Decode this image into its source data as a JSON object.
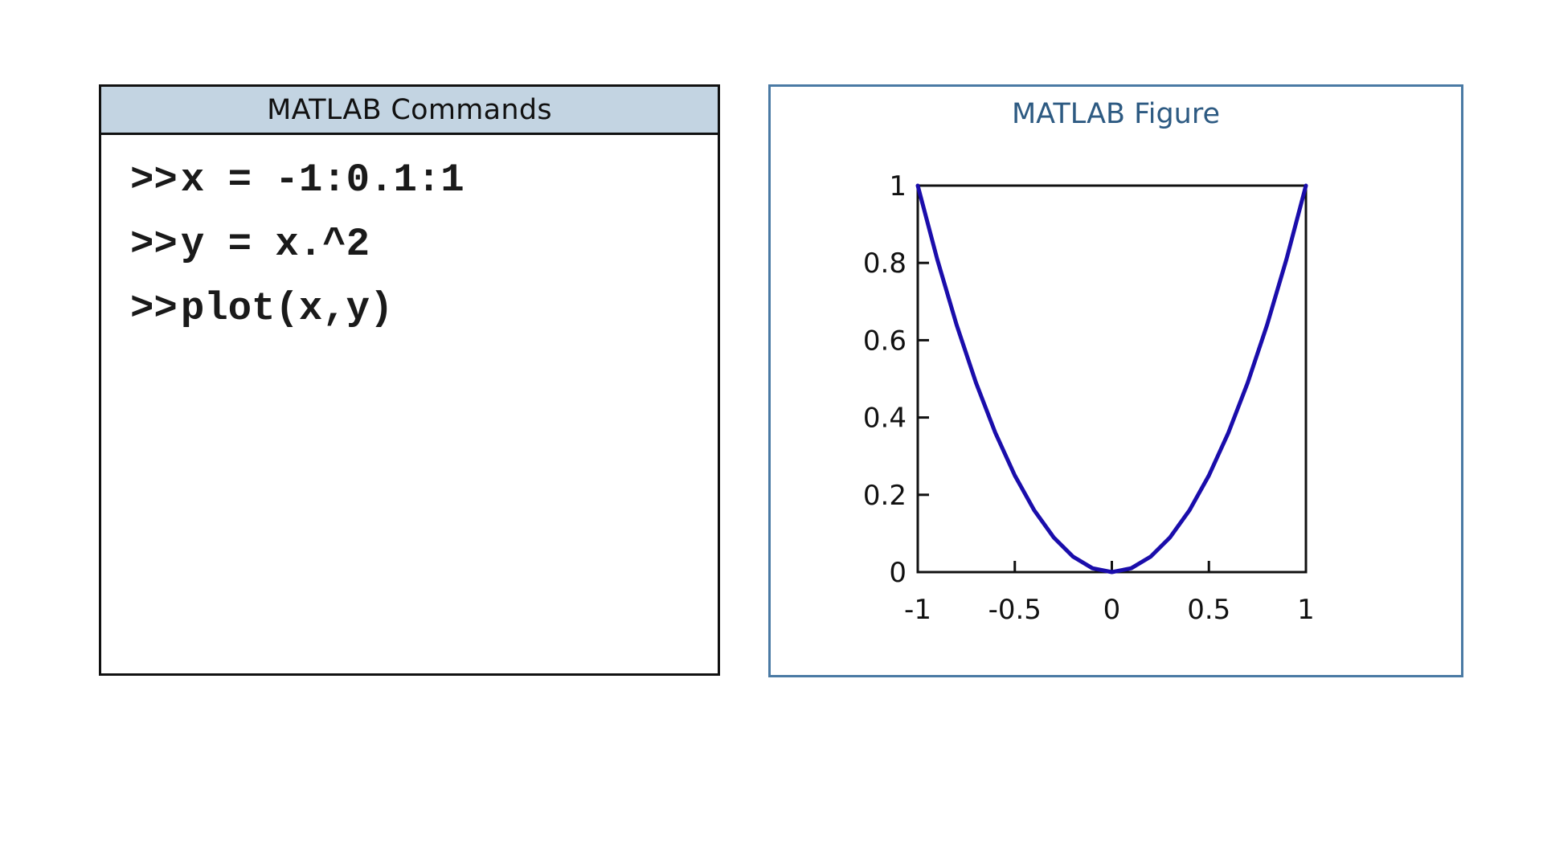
{
  "commands": {
    "title": "MATLAB Commands",
    "prompt": ">>",
    "lines": [
      "x = -1:0.1:1",
      "y = x.^2",
      "plot(x,y)"
    ]
  },
  "figure": {
    "title": "MATLAB Figure",
    "line_color": "#1a0dab",
    "accent_color": "#4a7aa4"
  },
  "chart_data": {
    "type": "line",
    "title": "",
    "xlabel": "",
    "ylabel": "",
    "xlim": [
      -1,
      1
    ],
    "ylim": [
      0,
      1
    ],
    "xticks": [
      -1,
      -0.5,
      0,
      0.5,
      1
    ],
    "xtick_labels": [
      "-1",
      "-0.5",
      "0",
      "0.5",
      "1"
    ],
    "yticks": [
      0,
      0.2,
      0.4,
      0.6,
      0.8,
      1
    ],
    "ytick_labels": [
      "0",
      "0.2",
      "0.4",
      "0.6",
      "0.8",
      "1"
    ],
    "grid": false,
    "series": [
      {
        "x": [
          -1,
          -0.9,
          -0.8,
          -0.7,
          -0.6,
          -0.5,
          -0.4,
          -0.3,
          -0.2,
          -0.1,
          0,
          0.1,
          0.2,
          0.3,
          0.4,
          0.5,
          0.6,
          0.7,
          0.8,
          0.9,
          1
        ],
        "y": [
          1,
          0.81,
          0.64,
          0.49,
          0.36,
          0.25,
          0.16,
          0.09,
          0.04,
          0.01,
          0,
          0.01,
          0.04,
          0.09,
          0.16,
          0.25,
          0.36,
          0.49,
          0.64,
          0.81,
          1
        ]
      }
    ]
  }
}
